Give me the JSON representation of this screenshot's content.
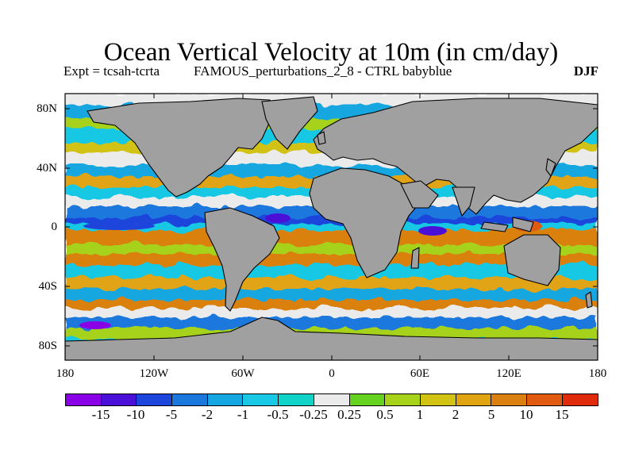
{
  "title": "Ocean Vertical Velocity at 10m (in cm/day)",
  "experiment": "Expt = tcsah-tcrta",
  "perturbation": "FAMOUS_perturbations_2_8 - CTRL babyblue",
  "season": "DJF",
  "map": {
    "projection": "equirectangular",
    "lon_range": [
      -180,
      180
    ],
    "lat_range": [
      -90,
      90
    ],
    "land_color": "#a0a0a0",
    "coastline_color": "#000000",
    "lat_ticks": [
      "80N",
      "40N",
      "0",
      "40S",
      "80S"
    ],
    "lon_ticks": [
      "180",
      "120W",
      "60W",
      "0",
      "60E",
      "120E",
      "180"
    ]
  },
  "colorbar": {
    "colors": [
      "#8a00e6",
      "#4b10d8",
      "#1d45dc",
      "#1a78dc",
      "#14a6e0",
      "#18c8e4",
      "#10d2c6",
      "#ebebeb",
      "#64d21e",
      "#a6d21a",
      "#d2c214",
      "#e0a412",
      "#d98010",
      "#e05a10",
      "#e02a0c"
    ],
    "labels": [
      "-15",
      "-10",
      "-5",
      "-2",
      "-1",
      "-0.5",
      "-0.25",
      "0.25",
      "0.5",
      "1",
      "2",
      "5",
      "10",
      "15"
    ]
  }
}
